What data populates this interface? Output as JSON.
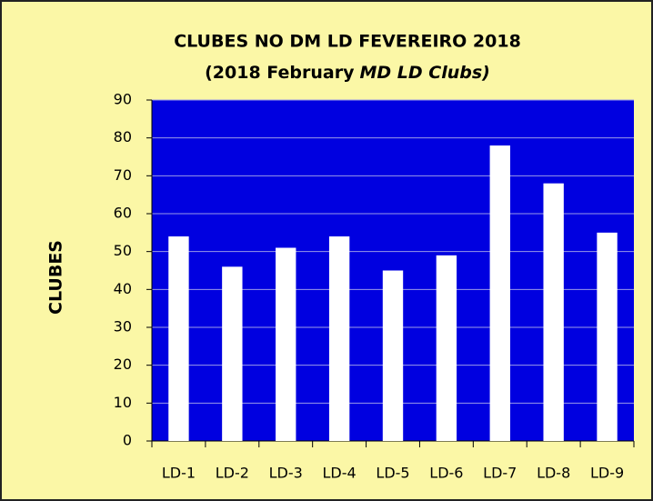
{
  "chart_data": {
    "type": "bar",
    "title": "CLUBES NO DM LD FEVEREIRO 2018",
    "subtitle": [
      "(2018 February",
      "MD LD Clubs)"
    ],
    "y_label": "CLUBES",
    "categories": [
      "LD-1",
      "LD-2",
      "LD-3",
      "LD-4",
      "LD-5",
      "LD-6",
      "LD-7",
      "LD-8",
      "LD-9"
    ],
    "values": [
      54,
      46,
      51,
      54,
      45,
      49,
      78,
      68,
      55
    ],
    "color": "#ffffff",
    "plot_color": "#0000e0",
    "ylim": [
      0,
      90
    ],
    "yticks": [
      0,
      10,
      20,
      30,
      40,
      50,
      60,
      70,
      80,
      90
    ],
    "grid": true
  }
}
